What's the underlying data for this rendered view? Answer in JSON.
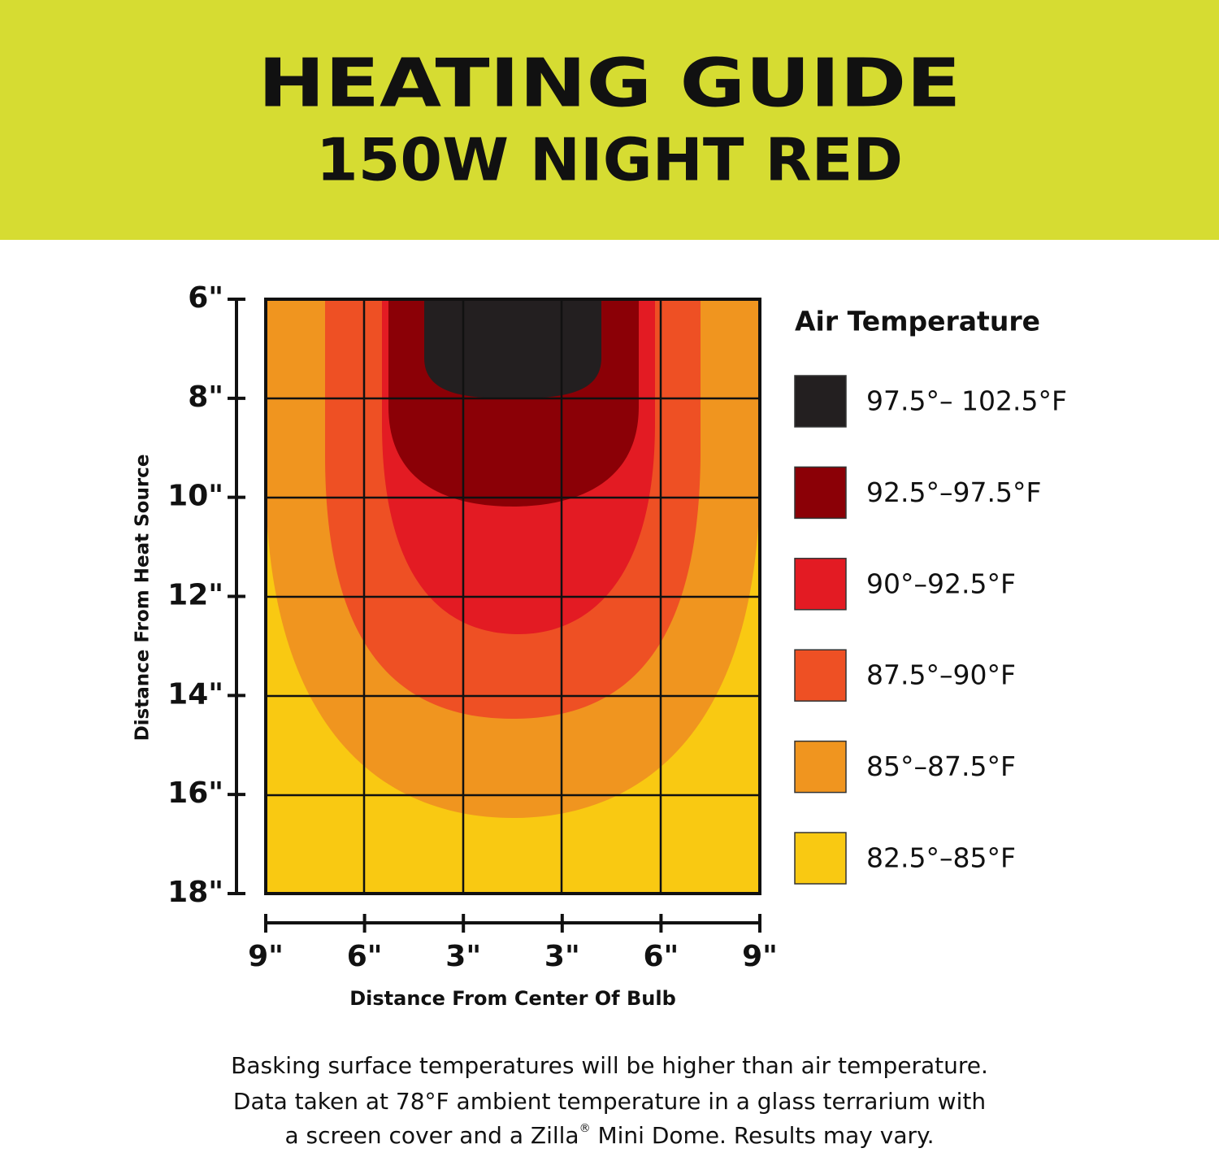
{
  "header": {
    "title": "HEATING GUIDE",
    "subtitle": "150W NIGHT RED"
  },
  "y_axis": {
    "label": "Distance From Heat Source",
    "ticks": [
      "6\"",
      "8\"",
      "10\"",
      "12\"",
      "14\"",
      "16\"",
      "18\""
    ]
  },
  "x_axis": {
    "label": "Distance From Center Of Bulb",
    "ticks": [
      "9\"",
      "6\"",
      "3\"",
      "3\"",
      "6\"",
      "9\""
    ]
  },
  "legend": {
    "title": "Air Temperature",
    "items": [
      {
        "label": "97.5°– 102.5°F",
        "color": "#231f20"
      },
      {
        "label": "92.5°–97.5°F",
        "color": "#8b0006"
      },
      {
        "label": "90°–92.5°F",
        "color": "#e31b23"
      },
      {
        "label": "87.5°–90°F",
        "color": "#ee5024"
      },
      {
        "label": "85°–87.5°F",
        "color": "#f0951f"
      },
      {
        "label": "82.5°–85°F",
        "color": "#f9c912"
      }
    ]
  },
  "footnote": {
    "line1": "Basking surface temperatures will be higher than air temperature.",
    "line2": "Data taken at 78°F ambient temperature in a glass terrarium with",
    "line3": [
      "a screen cover and a Zilla",
      "®",
      " Mini Dome. Results may vary."
    ]
  }
}
